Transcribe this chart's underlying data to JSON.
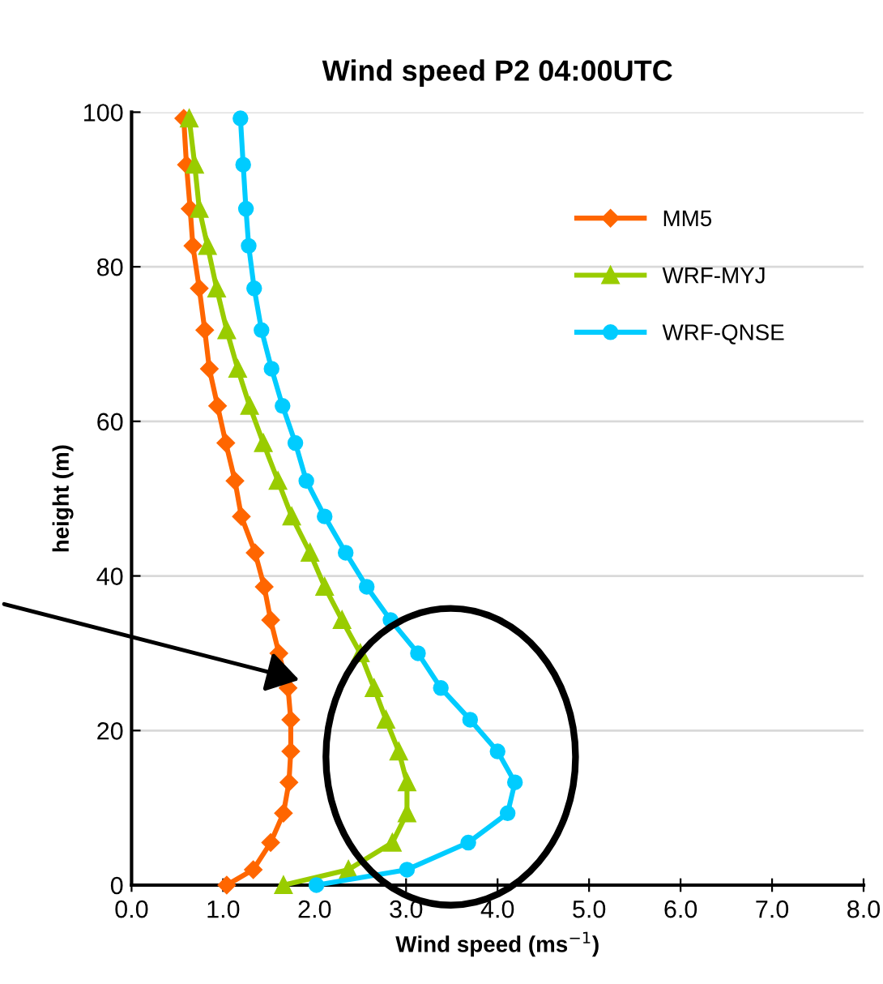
{
  "chart_data": {
    "type": "line",
    "title": "Wind speed P2 04:00UTC",
    "xlabel": "Wind speed (ms$^{−1}$)",
    "ylabel": "height (m)",
    "xlim": [
      0,
      8
    ],
    "xticks": [
      {
        "value": 0,
        "label": "0.0"
      },
      {
        "value": 1,
        "label": "1.0"
      },
      {
        "value": 2,
        "label": "2.0"
      },
      {
        "value": 3,
        "label": "3.0"
      },
      {
        "value": 4,
        "label": "4.0"
      },
      {
        "value": 5,
        "label": "5.0"
      },
      {
        "value": 6,
        "label": "6.0"
      },
      {
        "value": 7,
        "label": "7.0"
      },
      {
        "value": 8,
        "label": "8.0"
      }
    ],
    "ylim": [
      0,
      100
    ],
    "yticks": [
      0,
      20,
      40,
      60,
      80,
      100
    ],
    "grid": "y",
    "legend": "top right",
    "line_style": "solid",
    "series": [
      {
        "name": "MM5",
        "color": "#ff6600",
        "marker": "diamond",
        "x": [
          1.04,
          1.33,
          1.52,
          1.66,
          1.72,
          1.74,
          1.74,
          1.71,
          1.61,
          1.52,
          1.45,
          1.35,
          1.2,
          1.13,
          1.03,
          0.94,
          0.85,
          0.8,
          0.74,
          0.67,
          0.64,
          0.6,
          0.57
        ],
        "values": [
          0,
          2,
          5.5,
          9.3,
          13.3,
          17.3,
          21.4,
          25.5,
          30,
          34.3,
          38.6,
          43,
          47.7,
          52.3,
          57.2,
          62,
          66.8,
          71.8,
          77.2,
          82.7,
          87.5,
          93.2,
          99.2
        ]
      },
      {
        "name": "WRF-MYJ",
        "color": "#99cc00",
        "marker": "triangle",
        "x": [
          1.66,
          2.37,
          2.85,
          3.01,
          3.01,
          2.92,
          2.78,
          2.65,
          2.5,
          2.3,
          2.11,
          1.95,
          1.75,
          1.6,
          1.44,
          1.29,
          1.16,
          1.04,
          0.93,
          0.83,
          0.74,
          0.69,
          0.63
        ],
        "values": [
          0,
          2,
          5.5,
          9.3,
          13.3,
          17.3,
          21.4,
          25.5,
          30,
          34.3,
          38.6,
          43,
          47.7,
          52.3,
          57.2,
          62,
          66.8,
          71.8,
          77.2,
          82.7,
          87.5,
          93.2,
          99.2
        ]
      },
      {
        "name": "WRF-QNSE",
        "color": "#00ccff",
        "marker": "circle",
        "x": [
          2.02,
          3.01,
          3.68,
          4.11,
          4.19,
          4.0,
          3.7,
          3.38,
          3.13,
          2.83,
          2.57,
          2.34,
          2.11,
          1.91,
          1.79,
          1.65,
          1.53,
          1.42,
          1.34,
          1.28,
          1.25,
          1.22,
          1.19
        ],
        "values": [
          0,
          2,
          5.5,
          9.3,
          13.3,
          17.3,
          21.4,
          25.5,
          30,
          34.3,
          38.6,
          43,
          47.7,
          52.3,
          57.2,
          62,
          66.8,
          71.8,
          77.2,
          82.7,
          87.5,
          93.2,
          99.2
        ]
      }
    ]
  }
}
